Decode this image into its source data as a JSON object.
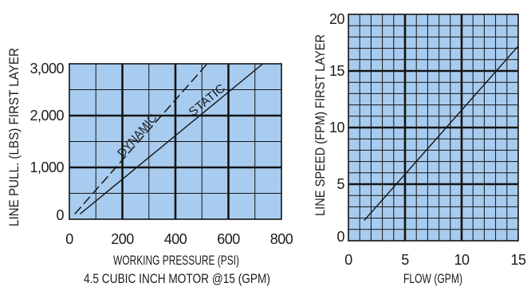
{
  "chart_data": [
    {
      "type": "line",
      "xlabel": "WORKING PRESSURE (PSI)",
      "caption": "4.5 CUBIC INCH MOTOR @15 (GPM)",
      "ylabel": "LINE PULL. (LBS) FIRST LAYER",
      "xlim": [
        0,
        800
      ],
      "ylim": [
        0,
        3000
      ],
      "xticks": [
        0,
        200,
        400,
        600,
        800
      ],
      "xtick_labels": [
        "0",
        "200",
        "400",
        "600",
        "800"
      ],
      "yticks": [
        0,
        1000,
        2000,
        3000
      ],
      "ytick_labels": [
        "0",
        "1,000",
        "2,000",
        "3,000"
      ],
      "grid": {
        "show": true,
        "major_x": 200,
        "minor_x": 100,
        "major_y": 1000,
        "minor_y": 500
      },
      "colors": {
        "plot_background": "#a8ccef",
        "lines": "#141414"
      },
      "series": [
        {
          "name": "DYNAMIC",
          "dashed": true,
          "x": [
            20,
            520
          ],
          "y": [
            100,
            3000
          ]
        },
        {
          "name": "STATIC",
          "dashed": false,
          "x": [
            40,
            730
          ],
          "y": [
            100,
            3000
          ]
        }
      ]
    },
    {
      "type": "line",
      "xlabel": "FLOW (GPM)",
      "ylabel": "LINE SPEED (FPM) FIRST LAYER",
      "xlim": [
        0,
        15
      ],
      "ylim": [
        0,
        20
      ],
      "xticks": [
        0,
        5,
        10,
        15
      ],
      "xtick_labels": [
        "0",
        "5",
        "10",
        "15"
      ],
      "yticks": [
        0,
        5,
        10,
        15,
        20
      ],
      "ytick_labels": [
        "0",
        "5",
        "10",
        "15",
        "20"
      ],
      "grid": {
        "show": true,
        "major_x": 5,
        "minor_x": 1,
        "major_y": 5,
        "minor_y": 1
      },
      "colors": {
        "plot_background": "#a8ccef",
        "lines": "#141414"
      },
      "series": [
        {
          "dashed": false,
          "x": [
            1.4,
            15
          ],
          "y": [
            1.8,
            17.2
          ]
        }
      ]
    }
  ]
}
